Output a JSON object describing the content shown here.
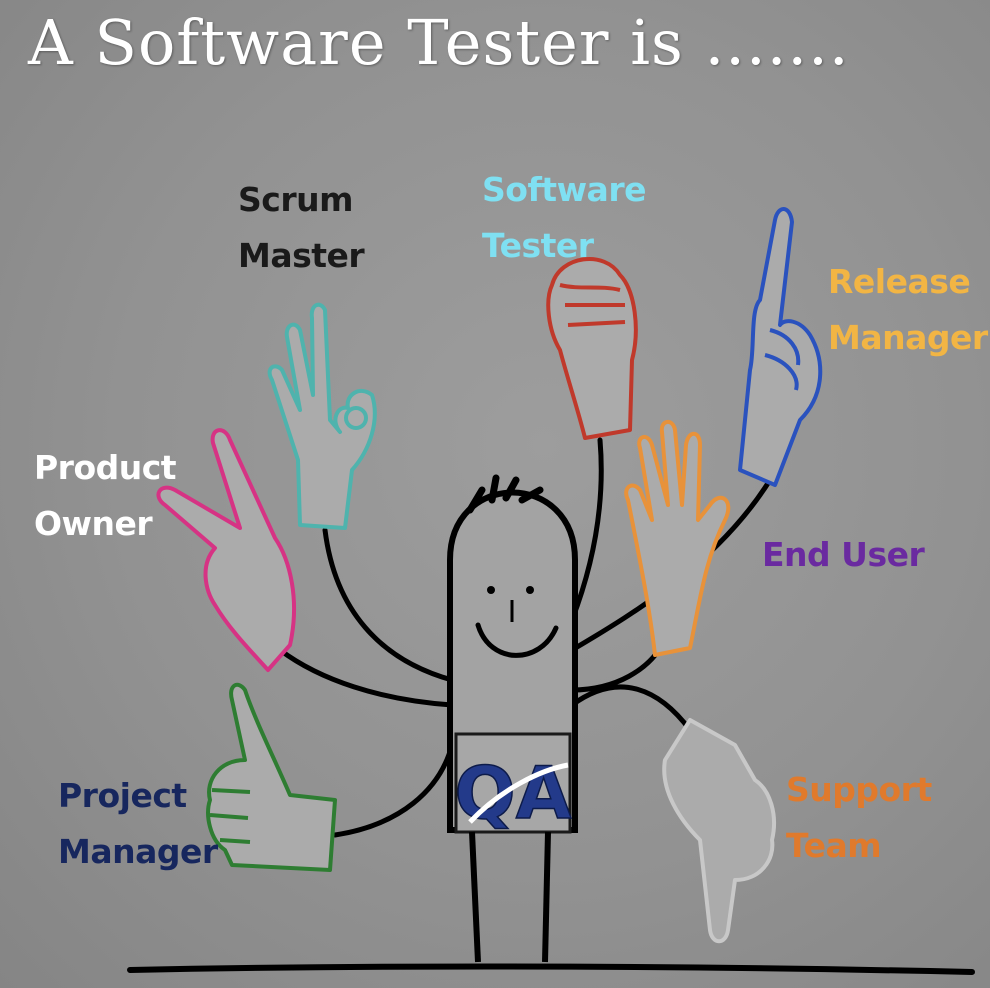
{
  "title": "A Software Tester is .......",
  "roles": {
    "scrum_master": {
      "line1": "Scrum",
      "line2": "Master",
      "color": "#1a1a1a"
    },
    "software_tester": {
      "line1": "Software",
      "line2": "Tester",
      "color": "#7fe0f2"
    },
    "release_manager": {
      "line1": "Release",
      "line2": "Manager",
      "color": "#f2b544"
    },
    "product_owner": {
      "line1": "Product",
      "line2": "Owner",
      "color": "#ffffff"
    },
    "end_user": {
      "line1": "End User",
      "color": "#6a2aa0"
    },
    "project_manager": {
      "line1": "Project",
      "line2": "Manager",
      "color": "#17275e"
    },
    "support_team": {
      "line1": "Support",
      "line2": "Team",
      "color": "#e07a2c"
    }
  },
  "badge": {
    "text": "QA",
    "color": "#233a8a"
  },
  "hands": {
    "scrum_master": "#4fb3ad",
    "software_tester": "#c0392b",
    "release_manager": "#2a52be",
    "product_owner": "#d63384",
    "end_user": "#e8923a",
    "project_manager": "#2e7d32",
    "support_team": "#c8c8c8"
  }
}
